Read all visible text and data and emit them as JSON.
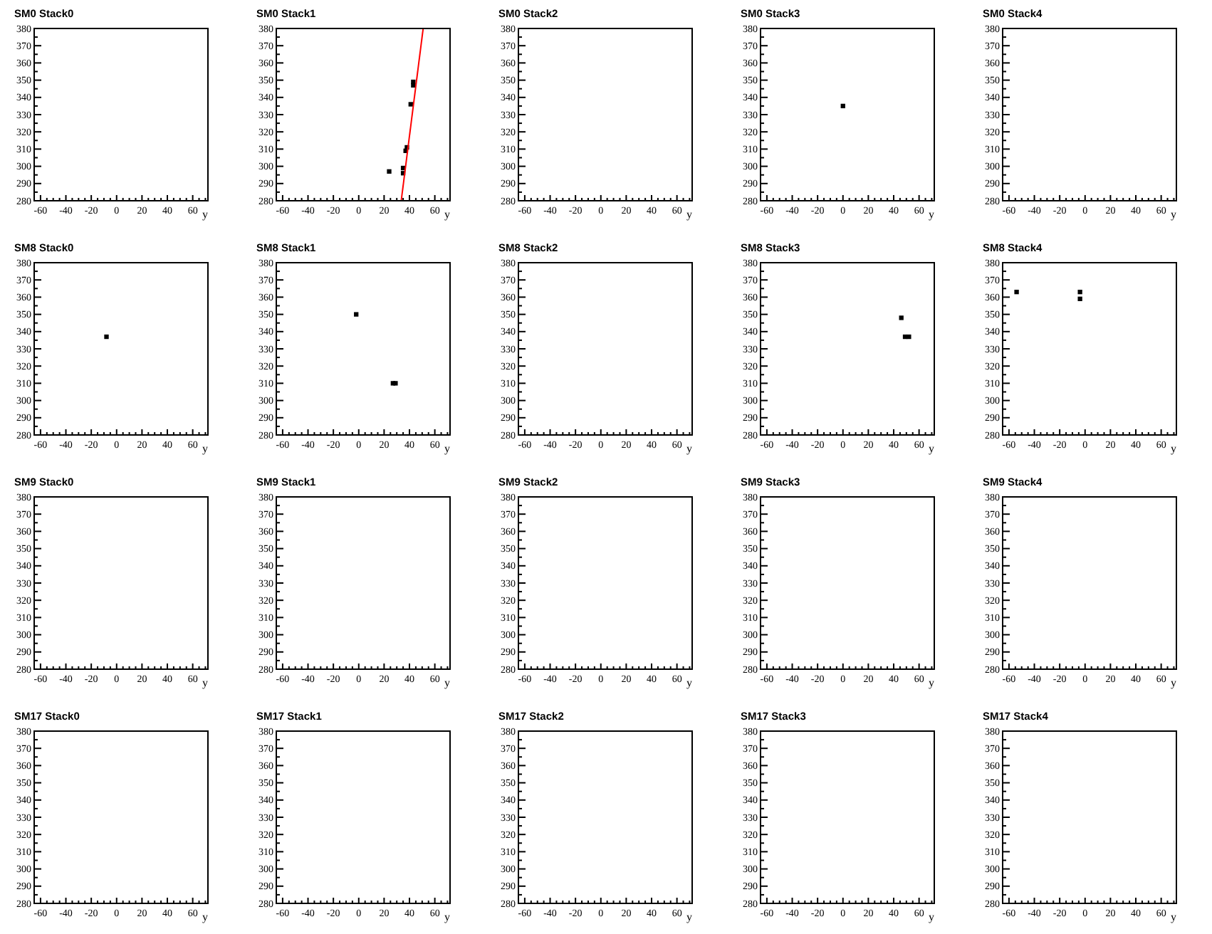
{
  "chart_data": [
    {
      "type": "scatter",
      "title": "SM0 Stack0",
      "xlabel": "y",
      "xlim": [
        -65,
        72
      ],
      "ylim": [
        280,
        380
      ],
      "xticks": [
        -60,
        -40,
        -20,
        0,
        20,
        40,
        60
      ],
      "yticks": [
        280,
        290,
        300,
        310,
        320,
        330,
        340,
        350,
        360,
        370,
        380
      ],
      "grid": false
    },
    {
      "type": "scatter",
      "title": "SM0 Stack1",
      "xlabel": "y",
      "xlim": [
        -65,
        72
      ],
      "ylim": [
        280,
        380
      ],
      "xticks": [
        -60,
        -40,
        -20,
        0,
        20,
        40,
        60
      ],
      "yticks": [
        280,
        290,
        300,
        310,
        320,
        330,
        340,
        350,
        360,
        370,
        380
      ],
      "marker": "square",
      "grid": false,
      "series": [
        {
          "color": "#000000",
          "x": [
            24,
            35,
            35,
            37,
            38,
            41,
            43,
            43
          ],
          "values": [
            297,
            296,
            299,
            309,
            311,
            336,
            347,
            349
          ]
        },
        {
          "type": "line",
          "marker": "none",
          "color": "#ff0000",
          "x": [
            33.5,
            50.8
          ],
          "values": [
            280,
            380
          ]
        }
      ]
    },
    {
      "type": "scatter",
      "title": "SM0 Stack2",
      "xlabel": "y",
      "xlim": [
        -65,
        72
      ],
      "ylim": [
        280,
        380
      ],
      "xticks": [
        -60,
        -40,
        -20,
        0,
        20,
        40,
        60
      ],
      "yticks": [
        280,
        290,
        300,
        310,
        320,
        330,
        340,
        350,
        360,
        370,
        380
      ],
      "grid": false
    },
    {
      "type": "scatter",
      "title": "SM0 Stack3",
      "xlabel": "y",
      "xlim": [
        -65,
        72
      ],
      "ylim": [
        280,
        380
      ],
      "xticks": [
        -60,
        -40,
        -20,
        0,
        20,
        40,
        60
      ],
      "yticks": [
        280,
        290,
        300,
        310,
        320,
        330,
        340,
        350,
        360,
        370,
        380
      ],
      "marker": "square",
      "grid": false,
      "series": [
        {
          "color": "#000000",
          "x": [
            0
          ],
          "values": [
            335
          ]
        }
      ]
    },
    {
      "type": "scatter",
      "title": "SM0 Stack4",
      "xlabel": "y",
      "xlim": [
        -65,
        72
      ],
      "ylim": [
        280,
        380
      ],
      "xticks": [
        -60,
        -40,
        -20,
        0,
        20,
        40,
        60
      ],
      "yticks": [
        280,
        290,
        300,
        310,
        320,
        330,
        340,
        350,
        360,
        370,
        380
      ],
      "grid": false
    },
    {
      "type": "scatter",
      "title": "SM8 Stack0",
      "xlabel": "y",
      "xlim": [
        -65,
        72
      ],
      "ylim": [
        280,
        380
      ],
      "xticks": [
        -60,
        -40,
        -20,
        0,
        20,
        40,
        60
      ],
      "yticks": [
        280,
        290,
        300,
        310,
        320,
        330,
        340,
        350,
        360,
        370,
        380
      ],
      "marker": "square",
      "grid": false,
      "series": [
        {
          "color": "#000000",
          "x": [
            -8
          ],
          "values": [
            337
          ]
        }
      ]
    },
    {
      "type": "scatter",
      "title": "SM8 Stack1",
      "xlabel": "y",
      "xlim": [
        -65,
        72
      ],
      "ylim": [
        280,
        380
      ],
      "xticks": [
        -60,
        -40,
        -20,
        0,
        20,
        40,
        60
      ],
      "yticks": [
        280,
        290,
        300,
        310,
        320,
        330,
        340,
        350,
        360,
        370,
        380
      ],
      "marker": "square",
      "grid": false,
      "series": [
        {
          "color": "#000000",
          "x": [
            -2,
            27,
            29
          ],
          "values": [
            350,
            310,
            310
          ]
        }
      ]
    },
    {
      "type": "scatter",
      "title": "SM8 Stack2",
      "xlabel": "y",
      "xlim": [
        -65,
        72
      ],
      "ylim": [
        280,
        380
      ],
      "xticks": [
        -60,
        -40,
        -20,
        0,
        20,
        40,
        60
      ],
      "yticks": [
        280,
        290,
        300,
        310,
        320,
        330,
        340,
        350,
        360,
        370,
        380
      ],
      "grid": false
    },
    {
      "type": "scatter",
      "title": "SM8 Stack3",
      "xlabel": "y",
      "xlim": [
        -65,
        72
      ],
      "ylim": [
        280,
        380
      ],
      "xticks": [
        -60,
        -40,
        -20,
        0,
        20,
        40,
        60
      ],
      "yticks": [
        280,
        290,
        300,
        310,
        320,
        330,
        340,
        350,
        360,
        370,
        380
      ],
      "marker": "square",
      "grid": false,
      "series": [
        {
          "color": "#000000",
          "x": [
            46,
            49,
            52
          ],
          "values": [
            348,
            337,
            337
          ]
        }
      ]
    },
    {
      "type": "scatter",
      "title": "SM8 Stack4",
      "xlabel": "y",
      "xlim": [
        -65,
        72
      ],
      "ylim": [
        280,
        380
      ],
      "xticks": [
        -60,
        -40,
        -20,
        0,
        20,
        40,
        60
      ],
      "yticks": [
        280,
        290,
        300,
        310,
        320,
        330,
        340,
        350,
        360,
        370,
        380
      ],
      "marker": "square",
      "grid": false,
      "series": [
        {
          "color": "#000000",
          "x": [
            -54,
            -4,
            -4
          ],
          "values": [
            363,
            363,
            359
          ]
        }
      ]
    },
    {
      "type": "scatter",
      "title": "SM9 Stack0",
      "xlabel": "y",
      "xlim": [
        -65,
        72
      ],
      "ylim": [
        280,
        380
      ],
      "xticks": [
        -60,
        -40,
        -20,
        0,
        20,
        40,
        60
      ],
      "yticks": [
        280,
        290,
        300,
        310,
        320,
        330,
        340,
        350,
        360,
        370,
        380
      ],
      "grid": false
    },
    {
      "type": "scatter",
      "title": "SM9 Stack1",
      "xlabel": "y",
      "xlim": [
        -65,
        72
      ],
      "ylim": [
        280,
        380
      ],
      "xticks": [
        -60,
        -40,
        -20,
        0,
        20,
        40,
        60
      ],
      "yticks": [
        280,
        290,
        300,
        310,
        320,
        330,
        340,
        350,
        360,
        370,
        380
      ],
      "grid": false
    },
    {
      "type": "scatter",
      "title": "SM9 Stack2",
      "xlabel": "y",
      "xlim": [
        -65,
        72
      ],
      "ylim": [
        280,
        380
      ],
      "xticks": [
        -60,
        -40,
        -20,
        0,
        20,
        40,
        60
      ],
      "yticks": [
        280,
        290,
        300,
        310,
        320,
        330,
        340,
        350,
        360,
        370,
        380
      ],
      "grid": false
    },
    {
      "type": "scatter",
      "title": "SM9 Stack3",
      "xlabel": "y",
      "xlim": [
        -65,
        72
      ],
      "ylim": [
        280,
        380
      ],
      "xticks": [
        -60,
        -40,
        -20,
        0,
        20,
        40,
        60
      ],
      "yticks": [
        280,
        290,
        300,
        310,
        320,
        330,
        340,
        350,
        360,
        370,
        380
      ],
      "grid": false
    },
    {
      "type": "scatter",
      "title": "SM9 Stack4",
      "xlabel": "y",
      "xlim": [
        -65,
        72
      ],
      "ylim": [
        280,
        380
      ],
      "xticks": [
        -60,
        -40,
        -20,
        0,
        20,
        40,
        60
      ],
      "yticks": [
        280,
        290,
        300,
        310,
        320,
        330,
        340,
        350,
        360,
        370,
        380
      ],
      "grid": false
    },
    {
      "type": "scatter",
      "title": "SM17 Stack0",
      "xlabel": "y",
      "xlim": [
        -65,
        72
      ],
      "ylim": [
        280,
        380
      ],
      "xticks": [
        -60,
        -40,
        -20,
        0,
        20,
        40,
        60
      ],
      "yticks": [
        280,
        290,
        300,
        310,
        320,
        330,
        340,
        350,
        360,
        370,
        380
      ],
      "grid": false
    },
    {
      "type": "scatter",
      "title": "SM17 Stack1",
      "xlabel": "y",
      "xlim": [
        -65,
        72
      ],
      "ylim": [
        280,
        380
      ],
      "xticks": [
        -60,
        -40,
        -20,
        0,
        20,
        40,
        60
      ],
      "yticks": [
        280,
        290,
        300,
        310,
        320,
        330,
        340,
        350,
        360,
        370,
        380
      ],
      "grid": false
    },
    {
      "type": "scatter",
      "title": "SM17 Stack2",
      "xlabel": "y",
      "xlim": [
        -65,
        72
      ],
      "ylim": [
        280,
        380
      ],
      "xticks": [
        -60,
        -40,
        -20,
        0,
        20,
        40,
        60
      ],
      "yticks": [
        280,
        290,
        300,
        310,
        320,
        330,
        340,
        350,
        360,
        370,
        380
      ],
      "grid": false
    },
    {
      "type": "scatter",
      "title": "SM17 Stack3",
      "xlabel": "y",
      "xlim": [
        -65,
        72
      ],
      "ylim": [
        280,
        380
      ],
      "xticks": [
        -60,
        -40,
        -20,
        0,
        20,
        40,
        60
      ],
      "yticks": [
        280,
        290,
        300,
        310,
        320,
        330,
        340,
        350,
        360,
        370,
        380
      ],
      "grid": false
    },
    {
      "type": "scatter",
      "title": "SM17 Stack4",
      "xlabel": "y",
      "xlim": [
        -65,
        72
      ],
      "ylim": [
        280,
        380
      ],
      "xticks": [
        -60,
        -40,
        -20,
        0,
        20,
        40,
        60
      ],
      "yticks": [
        280,
        290,
        300,
        310,
        320,
        330,
        340,
        350,
        360,
        370,
        380
      ],
      "grid": false
    }
  ]
}
